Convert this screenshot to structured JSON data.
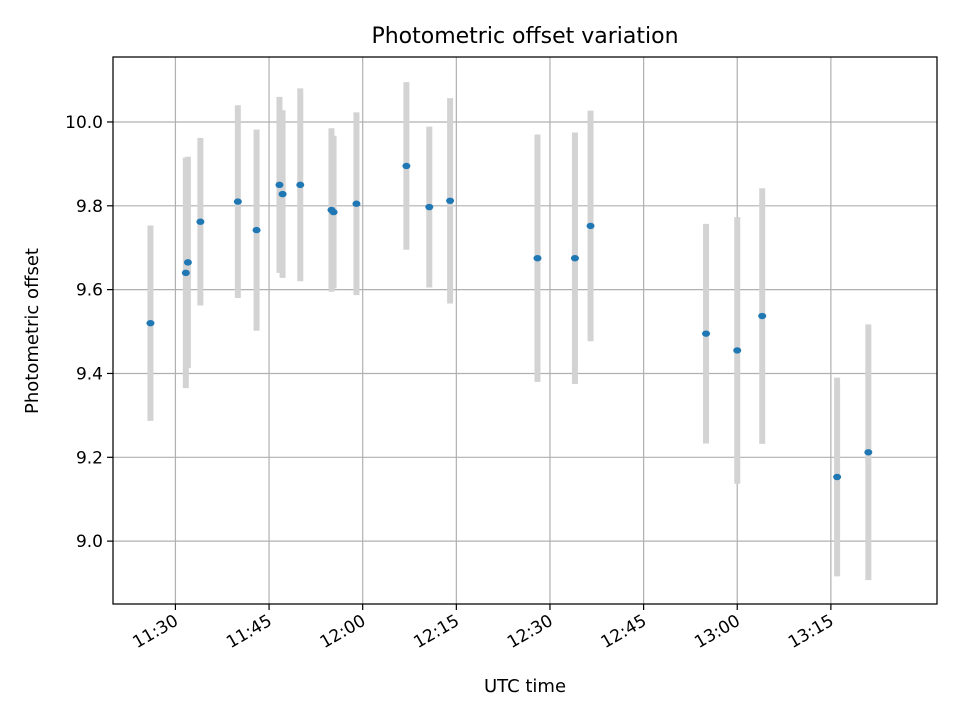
{
  "chart_data": {
    "type": "scatter",
    "title": "Photometric offset variation",
    "xlabel": "UTC time",
    "ylabel": "Photometric offset",
    "x_axis_type": "time",
    "xlim": [
      "11:20",
      "13:32"
    ],
    "ylim": [
      8.85,
      10.155
    ],
    "grid": true,
    "x_ticks": [
      "11:30",
      "11:45",
      "12:00",
      "12:15",
      "12:30",
      "12:45",
      "13:00",
      "13:15"
    ],
    "y_ticks": [
      "9.0",
      "9.2",
      "9.4",
      "9.6",
      "9.8",
      "10.0"
    ],
    "series_color": "#1f77b4",
    "errorbar_color": "#d3d3d3",
    "points": [
      {
        "t": "11:26",
        "y": 9.52,
        "err": 0.233
      },
      {
        "t": "11:31:40",
        "y": 9.64,
        "err": 0.275
      },
      {
        "t": "11:32",
        "y": 9.665,
        "err": 0.252
      },
      {
        "t": "11:34",
        "y": 9.762,
        "err": 0.2
      },
      {
        "t": "11:40",
        "y": 9.81,
        "err": 0.23
      },
      {
        "t": "11:43",
        "y": 9.742,
        "err": 0.24
      },
      {
        "t": "11:46:40",
        "y": 9.85,
        "err": 0.21
      },
      {
        "t": "11:47:10",
        "y": 9.828,
        "err": 0.2
      },
      {
        "t": "11:50",
        "y": 9.85,
        "err": 0.23
      },
      {
        "t": "11:55",
        "y": 9.79,
        "err": 0.195
      },
      {
        "t": "11:55:20",
        "y": 9.785,
        "err": 0.182
      },
      {
        "t": "11:59",
        "y": 9.805,
        "err": 0.218
      },
      {
        "t": "12:07",
        "y": 9.895,
        "err": 0.2
      },
      {
        "t": "12:10:40",
        "y": 9.797,
        "err": 0.192
      },
      {
        "t": "12:14",
        "y": 9.812,
        "err": 0.245
      },
      {
        "t": "12:28",
        "y": 9.675,
        "err": 0.295
      },
      {
        "t": "12:34",
        "y": 9.675,
        "err": 0.3
      },
      {
        "t": "12:36:30",
        "y": 9.752,
        "err": 0.275
      },
      {
        "t": "12:55",
        "y": 9.495,
        "err": 0.262
      },
      {
        "t": "13:00",
        "y": 9.455,
        "err": 0.318
      },
      {
        "t": "13:04",
        "y": 9.537,
        "err": 0.305
      },
      {
        "t": "13:16",
        "y": 9.153,
        "err": 0.237
      },
      {
        "t": "13:21",
        "y": 9.212,
        "err": 0.305
      }
    ]
  }
}
